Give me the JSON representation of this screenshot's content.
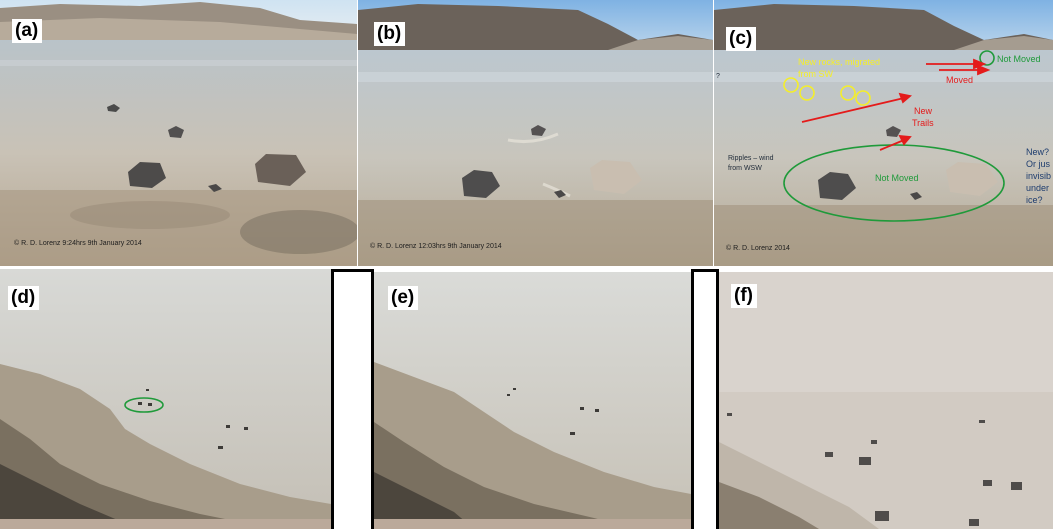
{
  "panels": [
    {
      "label": "(a)",
      "copyright": "© R. D. Lorenz  9:24hrs  9th January 2014"
    },
    {
      "label": "(b)",
      "copyright": "© R. D. Lorenz  12:03hrs  9th January 2014"
    },
    {
      "label": "(c)",
      "copyright": "© R. D. Lorenz 2014"
    },
    {
      "label": "(d)"
    },
    {
      "label": "(e)"
    },
    {
      "label": "(f)"
    }
  ],
  "annotations": {
    "question_mark": "?",
    "new_rocks": "New rocks, migrated",
    "new_rocks_2": "from SW",
    "moved": "Moved",
    "not_moved_top": "Not Moved",
    "new_trails": "New",
    "new_trails_2": "Trails",
    "ripples": "Ripples – wind",
    "ripples_2": "from WSW",
    "not_moved_center": "Not Moved",
    "new_question": "New?",
    "new_question_2": "Or jus",
    "new_question_3": "invisib",
    "new_question_4": "under",
    "new_question_5": "ice?"
  },
  "colors": {
    "yellow_annotation": "#f4ee2a",
    "red_annotation": "#e41b1b",
    "green_annotation": "#1f9a3a",
    "divider": "#000000"
  }
}
